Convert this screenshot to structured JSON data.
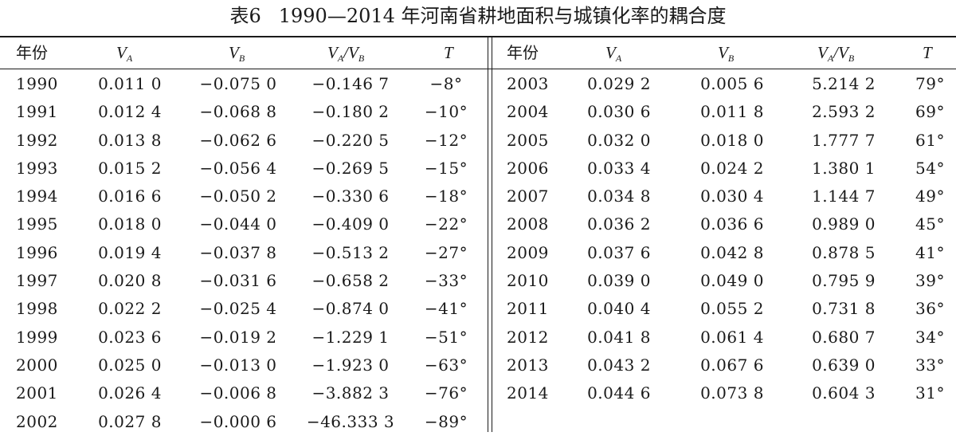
{
  "caption": {
    "number": "表6",
    "title": "1990—2014 年河南省耕地面积与城镇化率的耦合度"
  },
  "headers": {
    "year": "年份",
    "va": {
      "main": "V",
      "sub": "A"
    },
    "vb": {
      "main": "V",
      "sub": "B"
    },
    "ratio": {
      "num_main": "V",
      "num_sub": "A",
      "slash": "/",
      "den_main": "V",
      "den_sub": "B"
    },
    "t": "T"
  },
  "left_rows": [
    {
      "year": "1990",
      "va": "0.011 0",
      "vb": "−0.075 0",
      "ratio": "−0.146 7",
      "t": "−8°"
    },
    {
      "year": "1991",
      "va": "0.012 4",
      "vb": "−0.068 8",
      "ratio": "−0.180 2",
      "t": "−10°"
    },
    {
      "year": "1992",
      "va": "0.013 8",
      "vb": "−0.062 6",
      "ratio": "−0.220 5",
      "t": "−12°"
    },
    {
      "year": "1993",
      "va": "0.015 2",
      "vb": "−0.056 4",
      "ratio": "−0.269 5",
      "t": "−15°"
    },
    {
      "year": "1994",
      "va": "0.016 6",
      "vb": "−0.050 2",
      "ratio": "−0.330 6",
      "t": "−18°"
    },
    {
      "year": "1995",
      "va": "0.018 0",
      "vb": "−0.044 0",
      "ratio": "−0.409 0",
      "t": "−22°"
    },
    {
      "year": "1996",
      "va": "0.019 4",
      "vb": "−0.037 8",
      "ratio": "−0.513 2",
      "t": "−27°"
    },
    {
      "year": "1997",
      "va": "0.020 8",
      "vb": "−0.031 6",
      "ratio": "−0.658 2",
      "t": "−33°"
    },
    {
      "year": "1998",
      "va": "0.022 2",
      "vb": "−0.025 4",
      "ratio": "−0.874 0",
      "t": "−41°"
    },
    {
      "year": "1999",
      "va": "0.023 6",
      "vb": "−0.019 2",
      "ratio": "−1.229 1",
      "t": "−51°"
    },
    {
      "year": "2000",
      "va": "0.025 0",
      "vb": "−0.013 0",
      "ratio": "−1.923 0",
      "t": "−63°"
    },
    {
      "year": "2001",
      "va": "0.026 4",
      "vb": "−0.006 8",
      "ratio": "−3.882 3",
      "t": "−76°"
    },
    {
      "year": "2002",
      "va": "0.027 8",
      "vb": "−0.000 6",
      "ratio": "−46.333 3",
      "t": "−89°"
    }
  ],
  "right_rows": [
    {
      "year": "2003",
      "va": "0.029 2",
      "vb": "0.005 6",
      "ratio": "5.214 2",
      "t": "79°"
    },
    {
      "year": "2004",
      "va": "0.030 6",
      "vb": "0.011 8",
      "ratio": "2.593 2",
      "t": "69°"
    },
    {
      "year": "2005",
      "va": "0.032 0",
      "vb": "0.018 0",
      "ratio": "1.777 7",
      "t": "61°"
    },
    {
      "year": "2006",
      "va": "0.033 4",
      "vb": "0.024 2",
      "ratio": "1.380 1",
      "t": "54°"
    },
    {
      "year": "2007",
      "va": "0.034 8",
      "vb": "0.030 4",
      "ratio": "1.144 7",
      "t": "49°"
    },
    {
      "year": "2008",
      "va": "0.036 2",
      "vb": "0.036 6",
      "ratio": "0.989 0",
      "t": "45°"
    },
    {
      "year": "2009",
      "va": "0.037 6",
      "vb": "0.042 8",
      "ratio": "0.878 5",
      "t": "41°"
    },
    {
      "year": "2010",
      "va": "0.039 0",
      "vb": "0.049 0",
      "ratio": "0.795 9",
      "t": "39°"
    },
    {
      "year": "2011",
      "va": "0.040 4",
      "vb": "0.055 2",
      "ratio": "0.731 8",
      "t": "36°"
    },
    {
      "year": "2012",
      "va": "0.041 8",
      "vb": "0.061 4",
      "ratio": "0.680 7",
      "t": "34°"
    },
    {
      "year": "2013",
      "va": "0.043 2",
      "vb": "0.067 6",
      "ratio": "0.639 0",
      "t": "33°"
    },
    {
      "year": "2014",
      "va": "0.044 6",
      "vb": "0.073 8",
      "ratio": "0.604 3",
      "t": "31°"
    }
  ]
}
